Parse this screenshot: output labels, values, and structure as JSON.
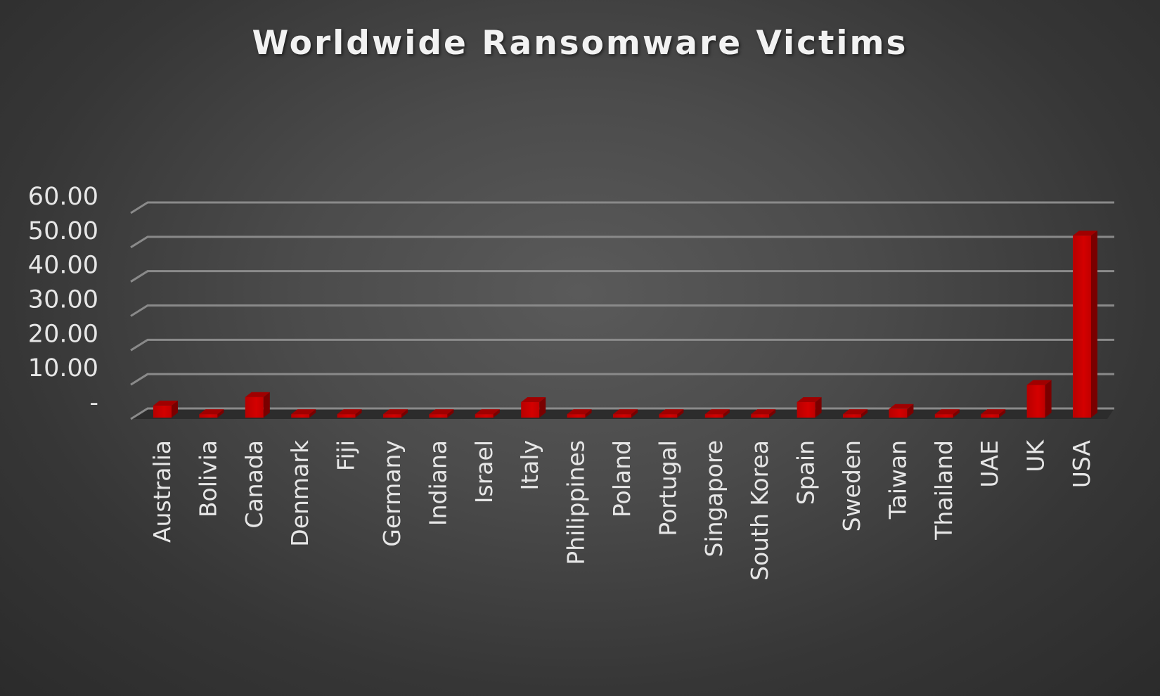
{
  "chart_data": {
    "type": "bar",
    "title": "Worldwide Ransomware Victims",
    "xlabel": "",
    "ylabel": "",
    "ylim": [
      0,
      60
    ],
    "yticks": [
      0,
      10,
      20,
      30,
      40,
      50,
      60
    ],
    "ytick_labels": [
      "-",
      "10.00",
      "20.00",
      "30.00",
      "40.00",
      "50.00",
      "60.00"
    ],
    "categories": [
      "Australia",
      "Bolivia",
      "Canada",
      "Denmark",
      "Fiji",
      "Germany",
      "Indiana",
      "Israel",
      "Italy",
      "Philippines",
      "Poland",
      "Portugal",
      "Singapore",
      "South Korea",
      "Spain",
      "Sweden",
      "Taiwan",
      "Thailand",
      "UAE",
      "UK",
      "USA"
    ],
    "values": [
      3.5,
      1,
      6,
      1,
      1,
      1,
      1,
      1,
      4.5,
      1,
      1,
      1,
      1,
      1,
      4.5,
      1,
      2.5,
      1,
      1,
      9.5,
      53
    ],
    "grid": true,
    "legend": "none",
    "bar_color": "#c00000",
    "style": "3d-column"
  }
}
